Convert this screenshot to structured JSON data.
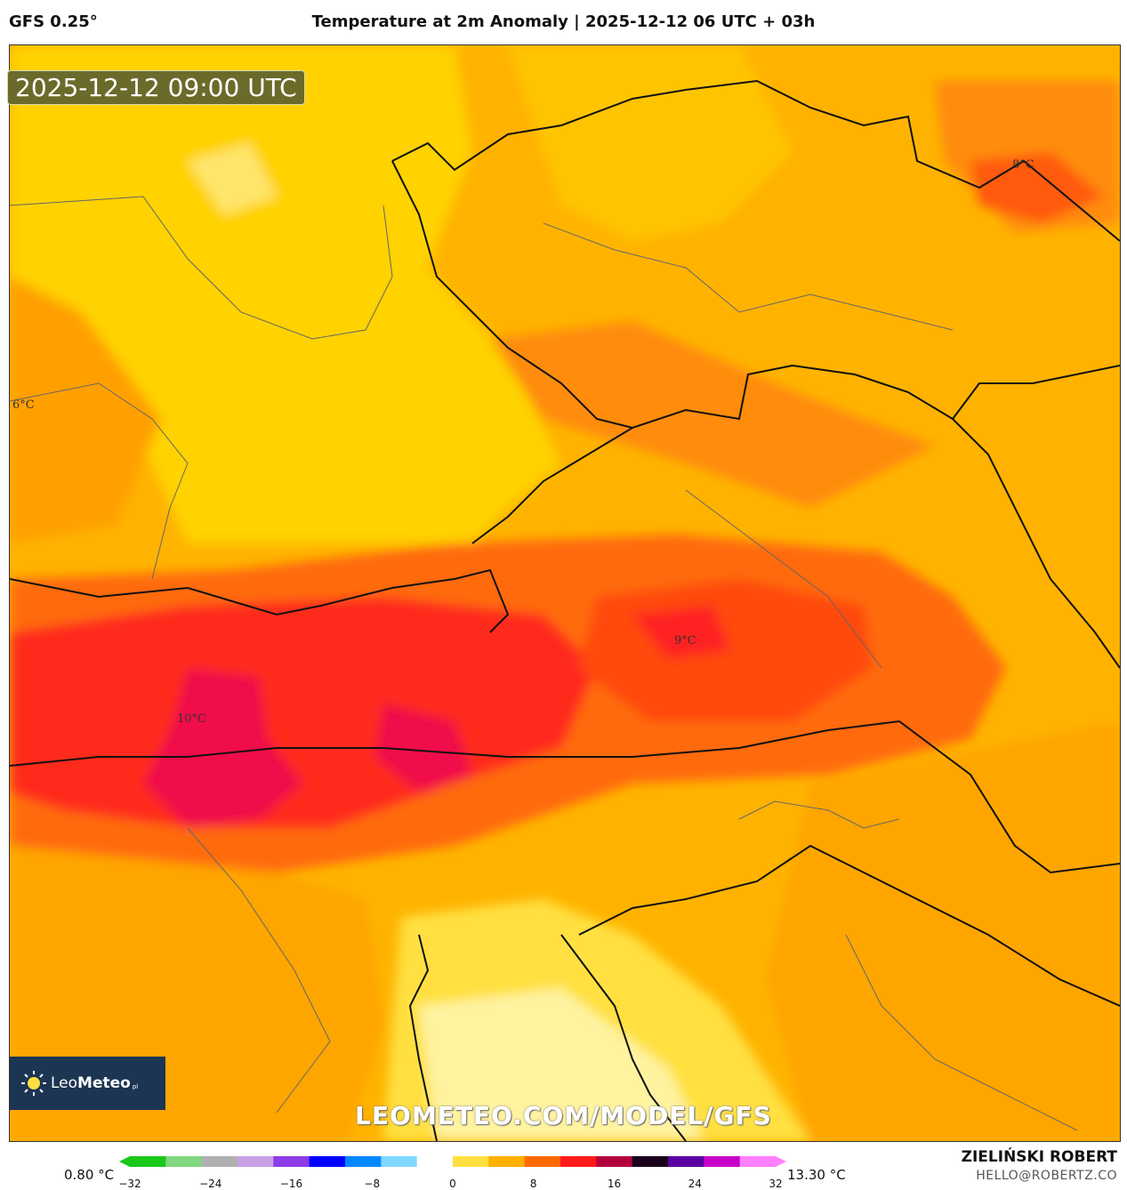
{
  "header": {
    "model": "GFS 0.25°",
    "title": "Temperature at 2m Anomaly | 2025-12-12 06 UTC + 03h"
  },
  "map": {
    "timestamp": "2025-12-12 09:00 UTC",
    "labels": [
      {
        "key": "l8",
        "text": "8°C"
      },
      {
        "key": "l6",
        "text": "6°C"
      },
      {
        "key": "l9",
        "text": "9°C"
      },
      {
        "key": "l10",
        "text": "10°C"
      }
    ],
    "watermark": "LEOMETEO.COM/MODEL/GFS",
    "logo": {
      "brand_light": "Leo",
      "brand_bold": "Meteo",
      "suffix": "pl"
    }
  },
  "legend": {
    "min_value": "0.80 °C",
    "max_value": "13.30 °C",
    "ticks": [
      "−32",
      "−24",
      "−16",
      "−8",
      "0",
      "8",
      "16",
      "24",
      "32"
    ],
    "colors": [
      "#19c819",
      "#7fd77f",
      "#b0b0b0",
      "#c8a0e6",
      "#8c3ce6",
      "#0000ff",
      "#0088ff",
      "#7fd8ff",
      "#ffffff",
      "#ffe040",
      "#ffb000",
      "#ff6a00",
      "#ff1a1a",
      "#b3003c",
      "#1a001a",
      "#5a00a0",
      "#c800c8",
      "#ff80ff"
    ]
  },
  "footer": {
    "author": "ZIELIŃSKI ROBERT",
    "email": "HELLO@ROBERTZ.CO"
  }
}
